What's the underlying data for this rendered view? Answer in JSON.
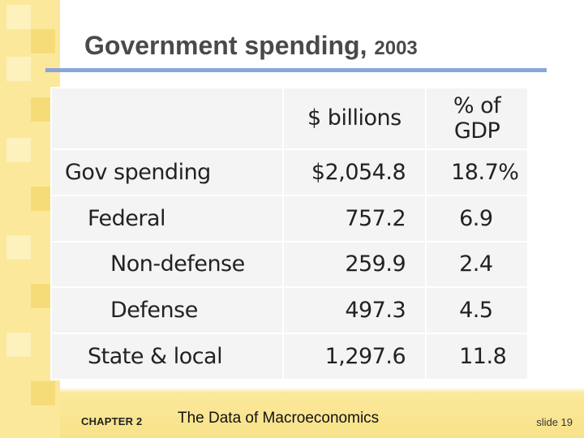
{
  "slide": {
    "title": "Government spending,",
    "title_year": "2003",
    "footer": {
      "chapter": "CHAPTER 2",
      "subject": "The Data of Macroeconomics",
      "slide_number": "slide 19"
    }
  },
  "table": {
    "headers": [
      "",
      "$ billions",
      "% of GDP"
    ],
    "header_pct_line1": "% of",
    "header_pct_line2": "GDP",
    "rows": [
      {
        "label": "Gov spending",
        "billions": "$2,054.8",
        "pct": "18.7%"
      },
      {
        "label": "Federal",
        "billions": "757.2",
        "pct": "6.9"
      },
      {
        "label": "Non-defense",
        "billions": "259.9",
        "pct": "2.4"
      },
      {
        "label": "Defense",
        "billions": "497.3",
        "pct": "4.5"
      },
      {
        "label": "State & local",
        "billions": "1,297.6",
        "pct": "11.8"
      }
    ]
  },
  "colors": {
    "accent_rule": "#8aa6d6",
    "strip": "#fbe89a",
    "table_bg": "#f4f4f4"
  }
}
